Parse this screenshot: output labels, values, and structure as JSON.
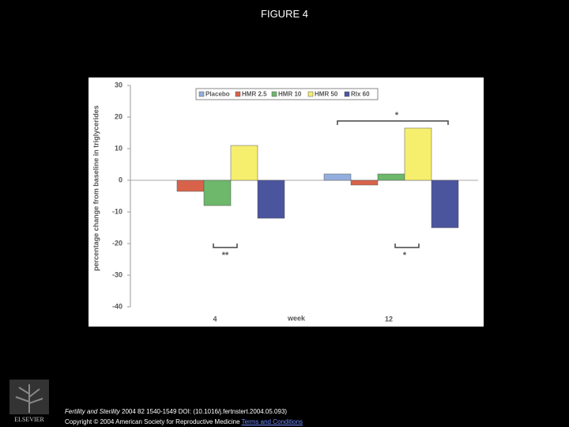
{
  "page_title": "FIGURE 4",
  "chart_data": {
    "type": "bar",
    "y_label": "percentage change from baseline in triglycerides",
    "x_label": "week",
    "categories": [
      "4",
      "12"
    ],
    "series": [
      {
        "name": "Placebo",
        "color": "#93aede",
        "values": [
          0,
          2
        ]
      },
      {
        "name": "HMR 2.5",
        "color": "#d8634a",
        "values": [
          -3.5,
          -1.5
        ]
      },
      {
        "name": "HMR 10",
        "color": "#6db86b",
        "values": [
          -8,
          2
        ]
      },
      {
        "name": "HMR 50",
        "color": "#f6ef6e",
        "values": [
          11,
          16.5
        ]
      },
      {
        "name": "Rlx 60",
        "color": "#4b559e",
        "values": [
          -12,
          -15
        ]
      }
    ],
    "ylim": [
      -40,
      30
    ],
    "yticks": [
      -40,
      -30,
      -20,
      -10,
      0,
      10,
      20,
      30
    ],
    "grid": false,
    "legend": "top",
    "annotations": [
      "**",
      "*",
      "*"
    ]
  },
  "footer": {
    "journal": "Fertility and Sterility",
    "citation": "2004 82 1540-1549 DOI: (10.1016/j.fertnstert.2004.05.093)",
    "copyright": "Copyright © 2004 American Society for Reproductive Medicine",
    "link": "Terms and Conditions",
    "logo": "ELSEVIER"
  }
}
